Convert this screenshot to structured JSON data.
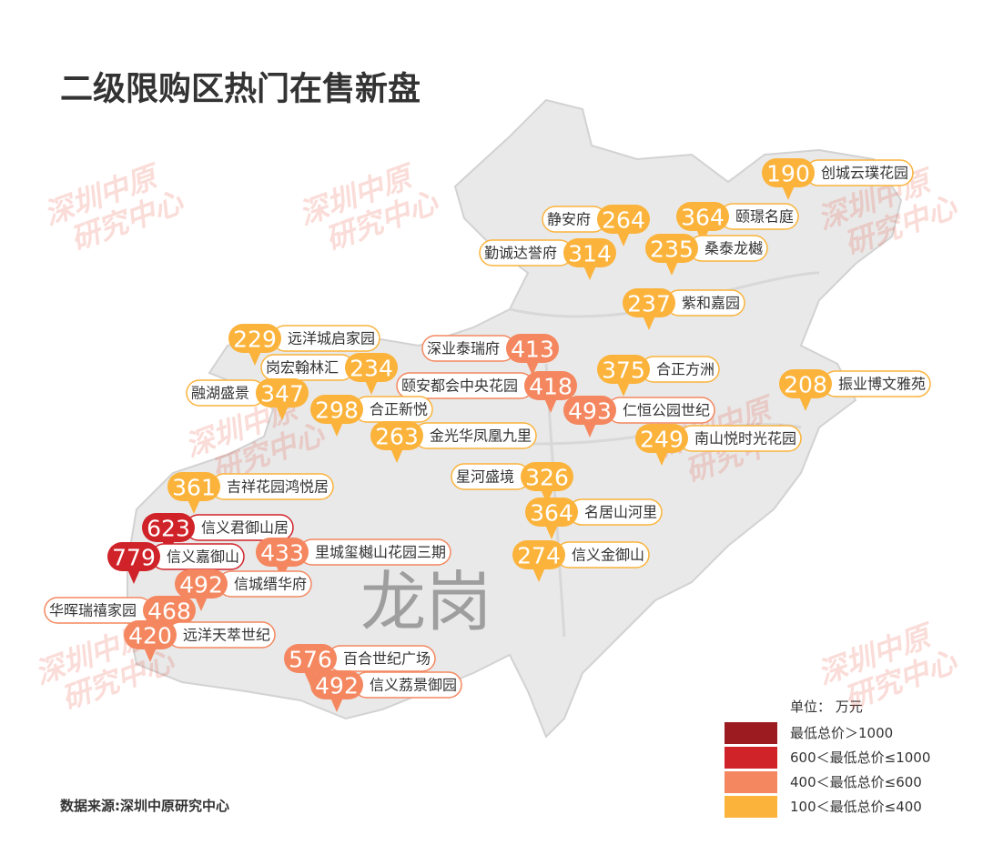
{
  "title": "二级限购区热门在售新盘",
  "district": "龙岗",
  "watermark": [
    "深圳中原",
    "研究中心"
  ],
  "legend": {
    "unit": "单位： 万元",
    "items": [
      {
        "label": "最低总价＞1000",
        "color": "#9b1b21"
      },
      {
        "label": "600＜最低总价≤1000",
        "color": "#d02229"
      },
      {
        "label": "400＜最低总价≤600",
        "color": "#f4875f"
      },
      {
        "label": "100＜最低总价≤400",
        "color": "#fbb33b"
      }
    ]
  },
  "source": "数据来源:深圳中原研究中心",
  "markers": [
    {
      "value": 190,
      "name": "创城云璞花园",
      "color": "#fbb33b"
    },
    {
      "value": 264,
      "name": "静安府",
      "color": "#fbb33b"
    },
    {
      "value": 364,
      "name": "颐璟名庭",
      "color": "#fbb33b"
    },
    {
      "value": 314,
      "name": "勤诚达誉府",
      "color": "#fbb33b"
    },
    {
      "value": 235,
      "name": "桑泰龙樾",
      "color": "#fbb33b"
    },
    {
      "value": 237,
      "name": "紫和嘉园",
      "color": "#fbb33b"
    },
    {
      "value": 229,
      "name": "远洋城启家园",
      "color": "#fbb33b"
    },
    {
      "value": 413,
      "name": "深业泰瑞府",
      "color": "#f4875f"
    },
    {
      "value": 375,
      "name": "合正方洲",
      "color": "#fbb33b"
    },
    {
      "value": 208,
      "name": "振业博文雅苑",
      "color": "#fbb33b"
    },
    {
      "value": 234,
      "name": "岗宏翰林汇",
      "color": "#fbb33b"
    },
    {
      "value": 418,
      "name": "颐安都会中央花园",
      "color": "#f4875f"
    },
    {
      "value": 347,
      "name": "融湖盛景",
      "color": "#fbb33b"
    },
    {
      "value": 298,
      "name": "合正新悦",
      "color": "#fbb33b"
    },
    {
      "value": 493,
      "name": "仁恒公园世纪",
      "color": "#f4875f"
    },
    {
      "value": 263,
      "name": "金光华凤凰九里",
      "color": "#fbb33b"
    },
    {
      "value": 249,
      "name": "南山悦时光花园",
      "color": "#fbb33b"
    },
    {
      "value": 326,
      "name": "星河盛境",
      "color": "#fbb33b"
    },
    {
      "value": 361,
      "name": "吉祥花园鸿悦居",
      "color": "#fbb33b"
    },
    {
      "value": 364,
      "name": "名居山河里",
      "color": "#fbb33b"
    },
    {
      "value": 623,
      "name": "信义君御山居",
      "color": "#d02229"
    },
    {
      "value": 274,
      "name": "信义金御山",
      "color": "#fbb33b"
    },
    {
      "value": 779,
      "name": "信义嘉御山",
      "color": "#d02229"
    },
    {
      "value": 433,
      "name": "里城玺樾山花园三期",
      "color": "#f4875f"
    },
    {
      "value": 492,
      "name": "信城缙华府",
      "color": "#f4875f"
    },
    {
      "value": 468,
      "name": "华晖瑞禧家园",
      "color": "#f4875f"
    },
    {
      "value": 420,
      "name": "远洋天萃世纪",
      "color": "#f4875f"
    },
    {
      "value": 576,
      "name": "百合世纪广场",
      "color": "#f4875f"
    },
    {
      "value": 492,
      "name": "信义荔景御园",
      "color": "#f4875f"
    }
  ]
}
